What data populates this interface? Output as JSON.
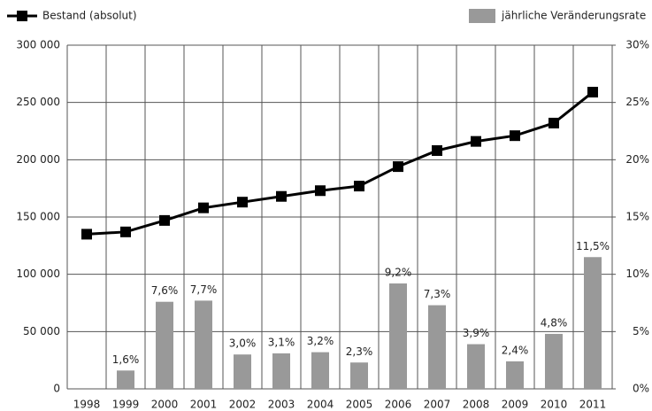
{
  "chart_data": {
    "type": "combo",
    "categories": [
      "1998",
      "1999",
      "2000",
      "2001",
      "2002",
      "2003",
      "2004",
      "2005",
      "2006",
      "2007",
      "2008",
      "2009",
      "2010",
      "2011"
    ],
    "series": [
      {
        "name": "Bestand (absolut)",
        "type": "line",
        "color": "#000000",
        "axis": "y",
        "values": [
          135000,
          137000,
          147000,
          158000,
          163000,
          168000,
          173000,
          177000,
          194000,
          208000,
          216000,
          221000,
          232000,
          259000
        ]
      },
      {
        "name": "jährliche Veränderungsrate",
        "type": "bar",
        "color": "#999999",
        "axis": "y2",
        "values": [
          null,
          1.6,
          7.6,
          7.7,
          3.0,
          3.1,
          3.2,
          2.3,
          9.2,
          7.3,
          3.9,
          2.4,
          4.8,
          11.5
        ],
        "value_labels": [
          null,
          "1,6%",
          "7,6%",
          "7,7%",
          "3,0%",
          "3,1%",
          "3,2%",
          "2,3%",
          "9,2%",
          "7,3%",
          "3,9%",
          "2,4%",
          "4,8%",
          "11,5%"
        ]
      }
    ],
    "ylim": [
      0,
      300000
    ],
    "yticks": [
      0,
      {
        "value": 50000,
        "label": "50 000"
      },
      {
        "value": 100000,
        "label": "100 000"
      },
      {
        "value": 150000,
        "label": "150 000"
      },
      {
        "value": 200000,
        "label": "200 000"
      },
      {
        "value": 250000,
        "label": "250 000"
      },
      {
        "value": 300000,
        "label": "300 000"
      }
    ],
    "y2lim": [
      0,
      30
    ],
    "y2ticks": [
      {
        "value": 0,
        "label": "0%"
      },
      {
        "value": 5,
        "label": "5%"
      },
      {
        "value": 10,
        "label": "10%"
      },
      {
        "value": 15,
        "label": "15%"
      },
      {
        "value": 20,
        "label": "20%"
      },
      {
        "value": 25,
        "label": "25%"
      },
      {
        "value": 30,
        "label": "30%"
      }
    ],
    "grid": true
  }
}
